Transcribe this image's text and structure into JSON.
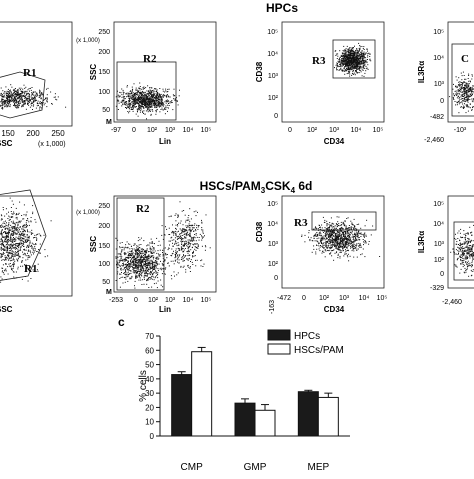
{
  "header_row1": "HPCs",
  "header_row2": "HSCs/PAM",
  "header_row2_sub": "3",
  "header_row2_mid": "CSK",
  "header_row2_sub2": "4",
  "header_row2_tail": " 6d",
  "panel_c_label": "c",
  "colors": {
    "black": "#1a1a1a",
    "white": "#ffffff"
  },
  "flow_panels": {
    "row1": {
      "p1": {
        "gate": "R1",
        "xlabel": "SSC",
        "xlabel_tail": "(x 1,000)",
        "xticks": [
          "150",
          "200",
          "250"
        ]
      },
      "p2": {
        "gate": "R2",
        "ylabel": "SSC",
        "yunit": "(x 1,000)",
        "yticks": [
          "250",
          "200",
          "150",
          "100",
          "50"
        ],
        "xlabel": "Lin",
        "xticks": [
          "-97",
          "0",
          "10²",
          "10³",
          "10⁴",
          "10⁵"
        ],
        "corner": "M"
      },
      "p3": {
        "gate": "R3",
        "ylabel": "CD38",
        "yticks": [
          "10⁵",
          "10⁴",
          "10³",
          "10²",
          "0"
        ],
        "xlabel": "CD34",
        "xticks": [
          "0",
          "10²",
          "10³",
          "10⁴",
          "10⁵"
        ]
      },
      "p4": {
        "gate": "C",
        "ylabel": "IL3Rα",
        "yticks": [
          "10⁵",
          "10⁴",
          "10³",
          "0",
          "-482",
          "-2,460"
        ],
        "xlabel": "",
        "xticks": [
          "-10³"
        ]
      }
    },
    "row2": {
      "p1": {
        "gate": "R1",
        "xlabel": "SSC",
        "xlabel_tail": "",
        "xticks": []
      },
      "p2": {
        "gate": "R2",
        "ylabel": "SSC",
        "yunit": "(x 1,000)",
        "yticks": [
          "250",
          "200",
          "150",
          "100",
          "50"
        ],
        "xlabel": "Lin",
        "xticks": [
          "-253",
          "0",
          "10²",
          "10³",
          "10⁴",
          "10⁵"
        ],
        "corner": "M"
      },
      "p3": {
        "gate": "R3",
        "ylabel": "CD38",
        "yticks": [
          "10⁵",
          "10⁴",
          "10³",
          "10²",
          "0",
          "-163"
        ],
        "xlabel": "CD34",
        "xticks": [
          "-472",
          "0",
          "10²",
          "10³",
          "10⁴",
          "10⁵"
        ]
      },
      "p4": {
        "gate": "",
        "ylabel": "IL3Rα",
        "yticks": [
          "10⁵",
          "10⁴",
          "10³",
          "10²",
          "0",
          "-329"
        ],
        "xlabel": "",
        "xticks": [
          "-2,460"
        ]
      }
    }
  },
  "chart_data": {
    "type": "bar",
    "categories": [
      "CMP",
      "GMP",
      "MEP"
    ],
    "series": [
      {
        "name": "HPCs",
        "values": [
          43,
          23,
          31
        ],
        "errors": [
          2,
          3,
          1
        ]
      },
      {
        "name": "HSCs/PAM",
        "values": [
          59,
          18,
          27
        ],
        "errors": [
          3,
          4,
          3
        ]
      }
    ],
    "ylabel": "% cells",
    "ylim": [
      0,
      70
    ],
    "yticks": [
      0,
      10,
      20,
      30,
      40,
      50,
      60,
      70
    ],
    "legend_position": "top-right"
  }
}
